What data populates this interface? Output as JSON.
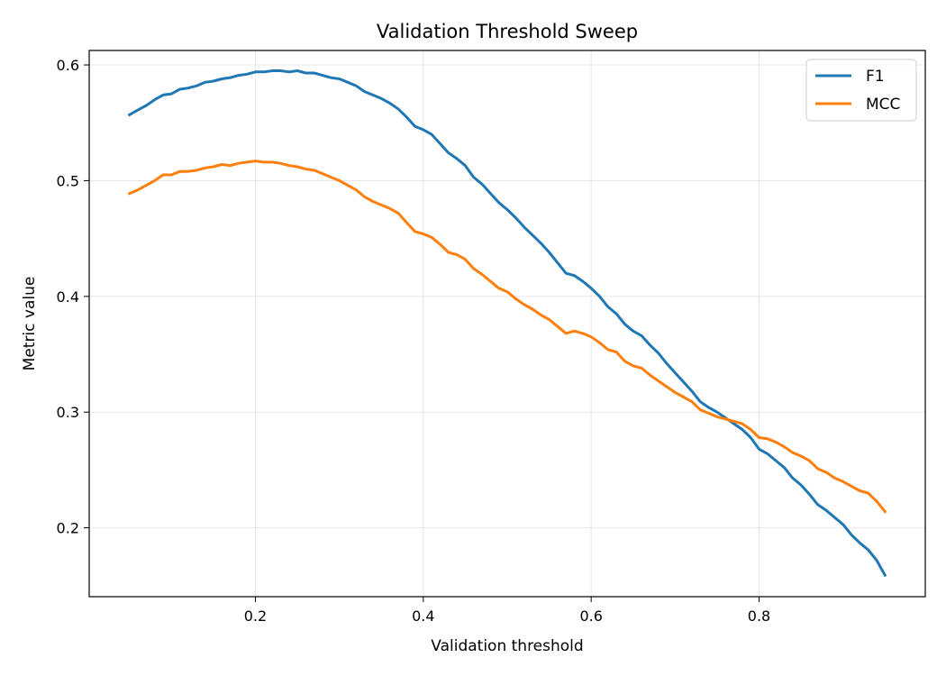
{
  "chart_data": {
    "type": "line",
    "title": "Validation Threshold Sweep",
    "xlabel": "Validation threshold",
    "ylabel": "Metric value",
    "xlim": [
      0.002,
      0.998
    ],
    "ylim": [
      0.1405,
      0.6125
    ],
    "xticks": [
      0.2,
      0.4,
      0.6,
      0.8
    ],
    "xtick_labels": [
      "0.2",
      "0.4",
      "0.6",
      "0.8"
    ],
    "yticks": [
      0.2,
      0.3,
      0.4,
      0.5,
      0.6
    ],
    "ytick_labels": [
      "0.2",
      "0.3",
      "0.4",
      "0.5",
      "0.6"
    ],
    "grid": true,
    "legend_position": "top-right",
    "x": [
      0.05,
      0.06,
      0.07,
      0.08,
      0.09,
      0.1,
      0.11,
      0.12,
      0.13,
      0.14,
      0.15,
      0.16,
      0.17,
      0.18,
      0.19,
      0.2,
      0.21,
      0.22,
      0.23,
      0.24,
      0.25,
      0.26,
      0.27,
      0.28,
      0.29,
      0.3,
      0.31,
      0.32,
      0.33,
      0.34,
      0.35,
      0.36,
      0.37,
      0.38,
      0.39,
      0.4,
      0.41,
      0.42,
      0.43,
      0.44,
      0.45,
      0.46,
      0.47,
      0.48,
      0.49,
      0.5,
      0.51,
      0.52,
      0.53,
      0.54,
      0.55,
      0.56,
      0.57,
      0.58,
      0.59,
      0.6,
      0.61,
      0.62,
      0.63,
      0.64,
      0.65,
      0.66,
      0.67,
      0.68,
      0.69,
      0.7,
      0.71,
      0.72,
      0.73,
      0.74,
      0.75,
      0.76,
      0.77,
      0.78,
      0.79,
      0.8,
      0.81,
      0.82,
      0.83,
      0.84,
      0.85,
      0.86,
      0.87,
      0.88,
      0.89,
      0.9,
      0.91,
      0.92,
      0.93,
      0.94,
      0.95
    ],
    "series": [
      {
        "name": "F1",
        "color": "#1f77b4",
        "values": [
          0.557,
          0.561,
          0.565,
          0.57,
          0.574,
          0.575,
          0.579,
          0.58,
          0.582,
          0.585,
          0.586,
          0.588,
          0.589,
          0.591,
          0.592,
          0.594,
          0.594,
          0.595,
          0.595,
          0.594,
          0.595,
          0.593,
          0.593,
          0.591,
          0.589,
          0.588,
          0.585,
          0.582,
          0.577,
          0.574,
          0.571,
          0.567,
          0.562,
          0.555,
          0.547,
          0.544,
          0.54,
          0.532,
          0.524,
          0.519,
          0.513,
          0.503,
          0.497,
          0.489,
          0.481,
          0.475,
          0.468,
          0.46,
          0.453,
          0.446,
          0.438,
          0.429,
          0.42,
          0.418,
          0.413,
          0.407,
          0.4,
          0.391,
          0.385,
          0.376,
          0.37,
          0.366,
          0.358,
          0.351,
          0.342,
          0.334,
          0.326,
          0.318,
          0.309,
          0.304,
          0.3,
          0.295,
          0.29,
          0.285,
          0.278,
          0.268,
          0.264,
          0.258,
          0.252,
          0.243,
          0.237,
          0.229,
          0.22,
          0.215,
          0.209,
          0.203,
          0.194,
          0.187,
          0.181,
          0.172,
          0.159
        ]
      },
      {
        "name": "MCC",
        "color": "#ff7f0e",
        "values": [
          0.489,
          0.492,
          0.496,
          0.5,
          0.505,
          0.505,
          0.508,
          0.508,
          0.509,
          0.511,
          0.512,
          0.514,
          0.513,
          0.515,
          0.516,
          0.517,
          0.516,
          0.516,
          0.515,
          0.513,
          0.512,
          0.51,
          0.509,
          0.506,
          0.503,
          0.5,
          0.496,
          0.492,
          0.486,
          0.482,
          0.479,
          0.476,
          0.472,
          0.464,
          0.456,
          0.454,
          0.451,
          0.445,
          0.438,
          0.436,
          0.432,
          0.424,
          0.419,
          0.413,
          0.407,
          0.404,
          0.398,
          0.393,
          0.389,
          0.384,
          0.38,
          0.374,
          0.368,
          0.37,
          0.368,
          0.365,
          0.36,
          0.354,
          0.352,
          0.344,
          0.34,
          0.338,
          0.332,
          0.327,
          0.322,
          0.317,
          0.313,
          0.309,
          0.302,
          0.299,
          0.296,
          0.294,
          0.292,
          0.29,
          0.285,
          0.278,
          0.277,
          0.274,
          0.27,
          0.265,
          0.262,
          0.258,
          0.251,
          0.248,
          0.243,
          0.24,
          0.236,
          0.232,
          0.23,
          0.223,
          0.214
        ]
      }
    ]
  }
}
